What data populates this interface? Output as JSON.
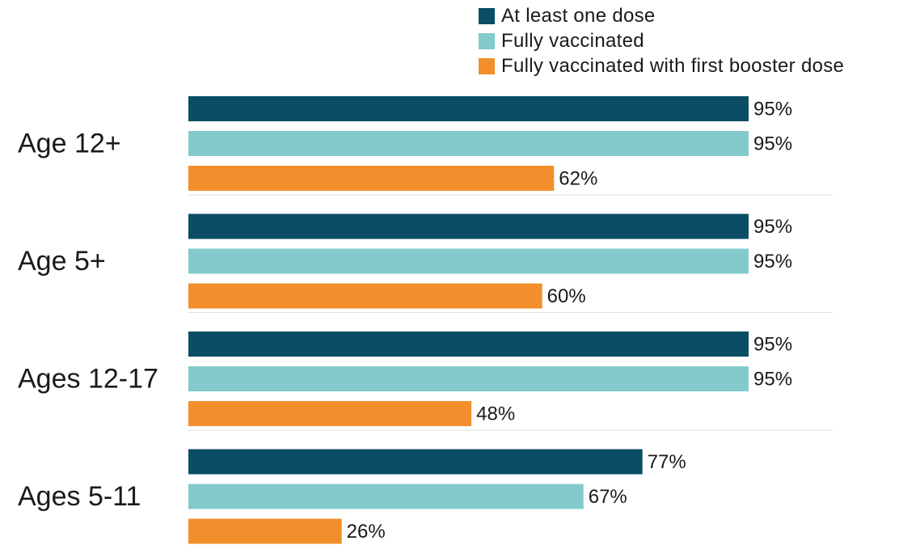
{
  "chart_data": {
    "type": "bar",
    "orientation": "horizontal",
    "categories": [
      "Age 12+",
      "Age 5+",
      "Ages 12-17",
      "Ages 5-11"
    ],
    "series": [
      {
        "name": "At least one dose",
        "color": "#0a4d64",
        "values": [
          95,
          95,
          95,
          77
        ],
        "labels": [
          "95%",
          "95%",
          "95%",
          "77%"
        ]
      },
      {
        "name": "Fully vaccinated",
        "color": "#82cacb",
        "values": [
          95,
          95,
          95,
          67
        ],
        "labels": [
          "95%",
          "95%",
          "95%",
          "67%"
        ]
      },
      {
        "name": "Fully vaccinated with first booster dose",
        "color": "#f28f2c",
        "values": [
          62,
          60,
          48,
          26
        ],
        "labels": [
          "62%",
          "60%",
          "48%",
          "26%"
        ]
      }
    ],
    "legend_position": "top-right",
    "grid": false
  }
}
